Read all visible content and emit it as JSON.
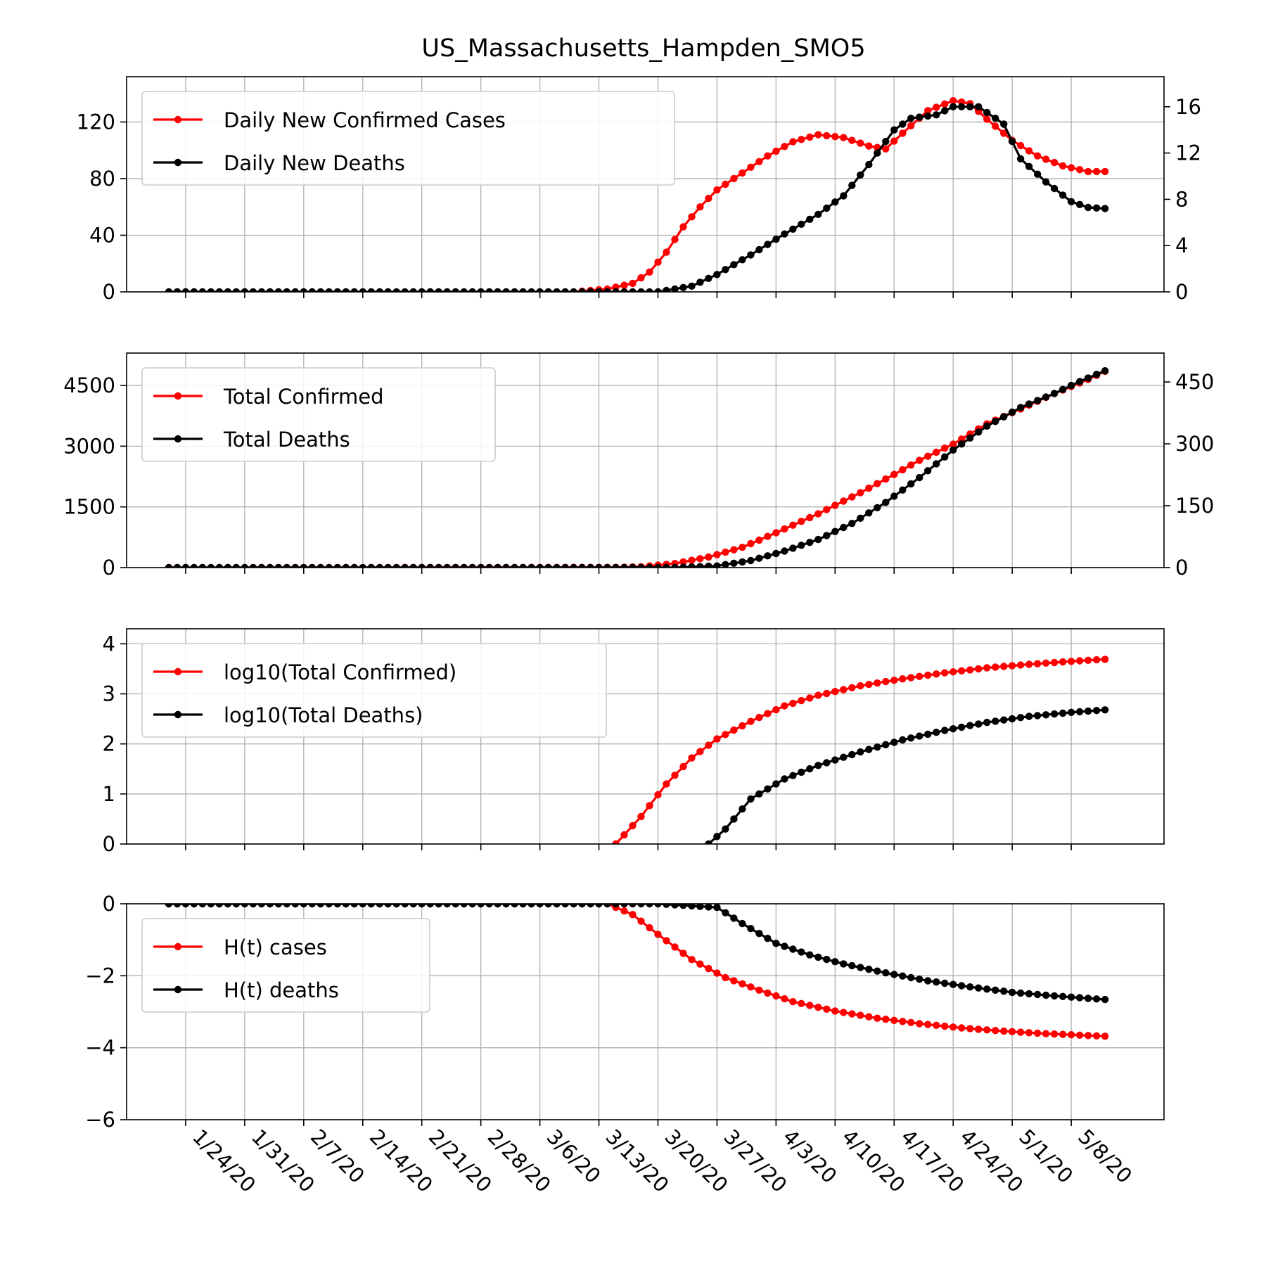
{
  "figure": {
    "title": "US_Massachusetts_Hampden_SMO5",
    "x_tick_labels": [
      "1/24/20",
      "1/31/20",
      "2/7/20",
      "2/14/20",
      "2/21/20",
      "2/28/20",
      "3/6/20",
      "3/13/20",
      "3/20/20",
      "3/27/20",
      "4/3/20",
      "4/10/20",
      "4/17/20",
      "4/24/20",
      "5/1/20",
      "5/8/20"
    ]
  },
  "chart_data": [
    {
      "type": "line",
      "x_start": "1/22/20",
      "x_end": "5/12/20",
      "xlim": [
        "1/17/20",
        "5/19/20"
      ],
      "grid": true,
      "legend": {
        "placement": "top-left"
      },
      "left_axis": {
        "ylim": [
          0,
          152
        ],
        "ticks": [
          0,
          40,
          80,
          120
        ],
        "tick_labels": [
          "0",
          "40",
          "80",
          "120"
        ]
      },
      "right_axis": {
        "ylim": [
          0,
          18.6
        ],
        "ticks": [
          0,
          4,
          8,
          12,
          16
        ],
        "tick_labels": [
          "0",
          "4",
          "8",
          "12",
          "16"
        ]
      },
      "series": [
        {
          "name": "Daily New Confirmed Cases",
          "axis": "left",
          "color": "#ff0000",
          "points": [
            [
              "1/22/20",
              0
            ],
            [
              "3/10/20",
              0
            ],
            [
              "3/14/20",
              2
            ],
            [
              "3/17/20",
              6
            ],
            [
              "3/19/20",
              14
            ],
            [
              "3/21/20",
              28
            ],
            [
              "3/23/20",
              46
            ],
            [
              "3/25/20",
              60
            ],
            [
              "3/27/20",
              72
            ],
            [
              "3/30/20",
              84
            ],
            [
              "4/2/20",
              96
            ],
            [
              "4/5/20",
              106
            ],
            [
              "4/8/20",
              111
            ],
            [
              "4/11/20",
              109
            ],
            [
              "4/14/20",
              103
            ],
            [
              "4/16/20",
              101
            ],
            [
              "4/18/20",
              112
            ],
            [
              "4/21/20",
              128
            ],
            [
              "4/24/20",
              135
            ],
            [
              "4/26/20",
              133
            ],
            [
              "4/28/20",
              122
            ],
            [
              "5/1/20",
              107
            ],
            [
              "5/4/20",
              96
            ],
            [
              "5/7/20",
              89
            ],
            [
              "5/10/20",
              85
            ],
            [
              "5/12/20",
              85
            ]
          ]
        },
        {
          "name": "Daily New Deaths",
          "axis": "right",
          "color": "#000000",
          "points": [
            [
              "1/22/20",
              0
            ],
            [
              "3/20/20",
              0
            ],
            [
              "3/24/20",
              0.5
            ],
            [
              "3/27/20",
              1.5
            ],
            [
              "3/31/20",
              3.2
            ],
            [
              "4/4/20",
              5
            ],
            [
              "4/8/20",
              6.7
            ],
            [
              "4/11/20",
              8.3
            ],
            [
              "4/14/20",
              11
            ],
            [
              "4/17/20",
              14
            ],
            [
              "4/19/20",
              15
            ],
            [
              "4/22/20",
              15.3
            ],
            [
              "4/24/20",
              16
            ],
            [
              "4/27/20",
              16
            ],
            [
              "4/30/20",
              14.5
            ],
            [
              "5/2/20",
              11.5
            ],
            [
              "5/5/20",
              9.5
            ],
            [
              "5/8/20",
              7.8
            ],
            [
              "5/10/20",
              7.3
            ],
            [
              "5/12/20",
              7.2
            ]
          ]
        }
      ]
    },
    {
      "type": "line",
      "x_start": "1/22/20",
      "x_end": "5/12/20",
      "xlim": [
        "1/17/20",
        "5/19/20"
      ],
      "grid": true,
      "legend": {
        "placement": "top-left"
      },
      "left_axis": {
        "ylim": [
          0,
          5300
        ],
        "ticks": [
          0,
          1500,
          3000,
          4500
        ],
        "tick_labels": [
          "0",
          "1500",
          "3000",
          "4500"
        ]
      },
      "right_axis": {
        "ylim": [
          0,
          520
        ],
        "ticks": [
          0,
          150,
          300,
          450
        ],
        "tick_labels": [
          "0",
          "150",
          "300",
          "450"
        ]
      },
      "series": [
        {
          "name": "Total Confirmed",
          "axis": "left",
          "color": "#ff0000",
          "points": [
            [
              "1/22/20",
              0
            ],
            [
              "3/15/20",
              5
            ],
            [
              "3/18/20",
              20
            ],
            [
              "3/22/20",
              100
            ],
            [
              "3/26/20",
              260
            ],
            [
              "3/30/20",
              500
            ],
            [
              "4/3/20",
              860
            ],
            [
              "4/8/20",
              1330
            ],
            [
              "4/13/20",
              1850
            ],
            [
              "4/17/20",
              2300
            ],
            [
              "4/20/20",
              2650
            ],
            [
              "4/24/20",
              3050
            ],
            [
              "4/28/20",
              3550
            ],
            [
              "5/2/20",
              3920
            ],
            [
              "5/6/20",
              4300
            ],
            [
              "5/10/20",
              4650
            ],
            [
              "5/12/20",
              4850
            ]
          ]
        },
        {
          "name": "Total Deaths",
          "axis": "right",
          "color": "#000000",
          "points": [
            [
              "1/22/20",
              0
            ],
            [
              "3/22/20",
              0
            ],
            [
              "3/27/20",
              4
            ],
            [
              "3/31/20",
              17
            ],
            [
              "4/4/20",
              40
            ],
            [
              "4/8/20",
              68
            ],
            [
              "4/12/20",
              107
            ],
            [
              "4/16/20",
              158
            ],
            [
              "4/20/20",
              218
            ],
            [
              "4/24/20",
              285
            ],
            [
              "4/28/20",
              343
            ],
            [
              "5/2/20",
              388
            ],
            [
              "5/6/20",
              422
            ],
            [
              "5/9/20",
              451
            ],
            [
              "5/12/20",
              477
            ]
          ]
        }
      ]
    },
    {
      "type": "line",
      "x_start": "1/22/20",
      "x_end": "5/12/20",
      "xlim": [
        "1/17/20",
        "5/19/20"
      ],
      "grid": true,
      "legend": {
        "placement": "top-left"
      },
      "left_axis": {
        "ylim": [
          0,
          4.3
        ],
        "ticks": [
          0,
          1,
          2,
          3,
          4
        ],
        "tick_labels": [
          "0",
          "1",
          "2",
          "3",
          "4"
        ]
      },
      "series": [
        {
          "name": "log10(Total Confirmed)",
          "axis": "left",
          "color": "#ff0000",
          "points": [
            [
              "3/15/20",
              0
            ],
            [
              "3/18/20",
              0.55
            ],
            [
              "3/21/20",
              1.2
            ],
            [
              "3/24/20",
              1.72
            ],
            [
              "3/27/20",
              2.1
            ],
            [
              "3/31/20",
              2.45
            ],
            [
              "4/4/20",
              2.76
            ],
            [
              "4/8/20",
              2.97
            ],
            [
              "4/13/20",
              3.16
            ],
            [
              "4/18/20",
              3.3
            ],
            [
              "4/23/20",
              3.42
            ],
            [
              "4/28/20",
              3.52
            ],
            [
              "5/3/20",
              3.59
            ],
            [
              "5/8/20",
              3.65
            ],
            [
              "5/12/20",
              3.69
            ]
          ]
        },
        {
          "name": "log10(Total Deaths)",
          "axis": "left",
          "color": "#000000",
          "points": [
            [
              "3/26/20",
              0
            ],
            [
              "3/28/20",
              0.3
            ],
            [
              "3/31/20",
              0.9
            ],
            [
              "4/4/20",
              1.3
            ],
            [
              "4/8/20",
              1.57
            ],
            [
              "4/13/20",
              1.84
            ],
            [
              "4/18/20",
              2.08
            ],
            [
              "4/23/20",
              2.27
            ],
            [
              "4/28/20",
              2.43
            ],
            [
              "5/3/20",
              2.55
            ],
            [
              "5/8/20",
              2.63
            ],
            [
              "5/12/20",
              2.68
            ]
          ]
        }
      ]
    },
    {
      "type": "line",
      "x_start": "1/22/20",
      "x_end": "5/12/20",
      "xlim": [
        "1/17/20",
        "5/19/20"
      ],
      "grid": true,
      "legend": {
        "placement": "top-left"
      },
      "left_axis": {
        "ylim": [
          -6,
          0
        ],
        "ticks": [
          -6,
          -4,
          -2,
          0
        ],
        "tick_labels": [
          "−6",
          "−4",
          "−2",
          "0"
        ]
      },
      "series": [
        {
          "name": "H(t) cases",
          "axis": "left",
          "color": "#ff0000",
          "points": [
            [
              "1/22/20",
              0
            ],
            [
              "3/14/20",
              0
            ],
            [
              "3/17/20",
              -0.3
            ],
            [
              "3/20/20",
              -0.85
            ],
            [
              "3/24/20",
              -1.55
            ],
            [
              "3/28/20",
              -2.05
            ],
            [
              "4/1/20",
              -2.4
            ],
            [
              "4/5/20",
              -2.72
            ],
            [
              "4/10/20",
              -2.98
            ],
            [
              "4/15/20",
              -3.18
            ],
            [
              "4/20/20",
              -3.33
            ],
            [
              "4/25/20",
              -3.45
            ],
            [
              "4/30/20",
              -3.54
            ],
            [
              "5/5/20",
              -3.61
            ],
            [
              "5/12/20",
              -3.68
            ]
          ]
        },
        {
          "name": "H(t) deaths",
          "axis": "left",
          "color": "#000000",
          "points": [
            [
              "1/22/20",
              0
            ],
            [
              "3/20/20",
              0
            ],
            [
              "3/27/20",
              -0.1
            ],
            [
              "3/30/20",
              -0.55
            ],
            [
              "4/3/20",
              -1.1
            ],
            [
              "4/7/20",
              -1.42
            ],
            [
              "4/11/20",
              -1.67
            ],
            [
              "4/16/20",
              -1.92
            ],
            [
              "4/21/20",
              -2.14
            ],
            [
              "4/26/20",
              -2.31
            ],
            [
              "5/1/20",
              -2.46
            ],
            [
              "5/6/20",
              -2.56
            ],
            [
              "5/12/20",
              -2.66
            ]
          ]
        }
      ]
    }
  ]
}
